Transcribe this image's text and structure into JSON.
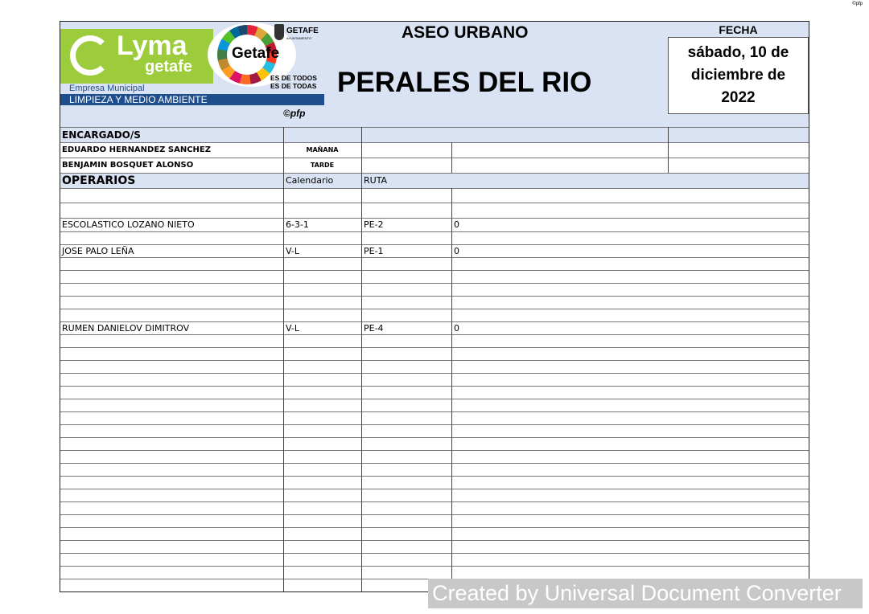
{
  "corner_mark": "©pfp",
  "header": {
    "logo": {
      "brand": "Lyma",
      "brand_sub": "getafe",
      "company_line1": "Empresa Municipal",
      "company_line2": "LIMPIEZA Y MEDIO AMBIENTE",
      "city_badge": "Getafe",
      "city_slogan1": "ES DE TODOS",
      "city_slogan2": "ES DE TODAS",
      "council": "GETAFE",
      "council_sub": "AYUNTAMIENTO"
    },
    "copyright": "©pfp",
    "department": "ASEO URBANO",
    "zone": "PERALES DEL RIO",
    "date_label": "FECHA",
    "date_value": "sábado, 10 de diciembre de 2022"
  },
  "encargados": {
    "title": "ENCARGADO/S",
    "rows": [
      {
        "name": "EDUARDO HERNANDEZ SANCHEZ",
        "turno": "MAÑANA"
      },
      {
        "name": "BENJAMIN BOSQUET ALONSO",
        "turno": "TARDE"
      }
    ]
  },
  "operarios": {
    "title": "OPERARIOS",
    "col_calendario": "Calendario",
    "col_ruta": "RUTA",
    "rows": [
      {
        "name": "",
        "calendario": "",
        "ruta": "",
        "value": ""
      },
      {
        "name": "",
        "calendario": "",
        "ruta": "",
        "value": ""
      },
      {
        "name": "ESCOLASTICO LOZANO NIETO",
        "calendario": "6-3-1",
        "ruta": "PE-2",
        "value": "0"
      },
      {
        "name": "",
        "calendario": "",
        "ruta": "",
        "value": ""
      },
      {
        "name": "JOSE PALO LEÑA",
        "calendario": "V-L",
        "ruta": "PE-1",
        "value": "0"
      },
      {
        "name": "",
        "calendario": "",
        "ruta": "",
        "value": ""
      },
      {
        "name": "",
        "calendario": "",
        "ruta": "",
        "value": ""
      },
      {
        "name": "",
        "calendario": "",
        "ruta": "",
        "value": ""
      },
      {
        "name": "",
        "calendario": "",
        "ruta": "",
        "value": ""
      },
      {
        "name": "",
        "calendario": "",
        "ruta": "",
        "value": ""
      },
      {
        "name": "RUMEN DANIELOV DIMITROV",
        "calendario": "V-L",
        "ruta": "PE-4",
        "value": "0"
      },
      {
        "name": "",
        "calendario": "",
        "ruta": "",
        "value": ""
      },
      {
        "name": "",
        "calendario": "",
        "ruta": "",
        "value": ""
      },
      {
        "name": "",
        "calendario": "",
        "ruta": "",
        "value": ""
      },
      {
        "name": "",
        "calendario": "",
        "ruta": "",
        "value": ""
      },
      {
        "name": "",
        "calendario": "",
        "ruta": "",
        "value": ""
      },
      {
        "name": "",
        "calendario": "",
        "ruta": "",
        "value": ""
      },
      {
        "name": "",
        "calendario": "",
        "ruta": "",
        "value": ""
      },
      {
        "name": "",
        "calendario": "",
        "ruta": "",
        "value": ""
      },
      {
        "name": "",
        "calendario": "",
        "ruta": "",
        "value": ""
      },
      {
        "name": "",
        "calendario": "",
        "ruta": "",
        "value": ""
      },
      {
        "name": "",
        "calendario": "",
        "ruta": "",
        "value": ""
      },
      {
        "name": "",
        "calendario": "",
        "ruta": "",
        "value": ""
      },
      {
        "name": "",
        "calendario": "",
        "ruta": "",
        "value": ""
      },
      {
        "name": "",
        "calendario": "",
        "ruta": "",
        "value": ""
      },
      {
        "name": "",
        "calendario": "",
        "ruta": "",
        "value": ""
      },
      {
        "name": "",
        "calendario": "",
        "ruta": "",
        "value": ""
      },
      {
        "name": "",
        "calendario": "",
        "ruta": "",
        "value": ""
      },
      {
        "name": "",
        "calendario": "",
        "ruta": "",
        "value": ""
      },
      {
        "name": "",
        "calendario": "",
        "ruta": "",
        "value": ""
      },
      {
        "name": "",
        "calendario": "",
        "ruta": "",
        "value": ""
      }
    ]
  },
  "watermark": "Created by Universal Document Converter",
  "colors": {
    "header_bg": "#dae3f3",
    "logo_green": "#9ccc3c",
    "logo_blue": "#1f4e8c",
    "watermark_bg": "#c8c8c8"
  }
}
